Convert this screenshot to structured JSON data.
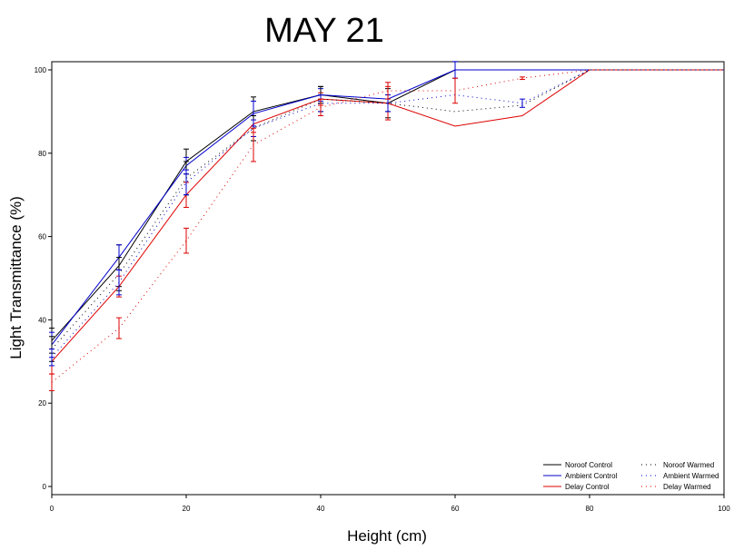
{
  "chart_data": {
    "type": "line",
    "title": "MAY 21",
    "xlabel": "Height (cm)",
    "ylabel": "Light Transmittance (%)",
    "xlim": [
      0,
      100
    ],
    "ylim": [
      0,
      100
    ],
    "x_ticks": [
      0,
      20,
      40,
      60,
      80,
      100
    ],
    "y_ticks": [
      0,
      20,
      40,
      60,
      80,
      100
    ],
    "grid": false,
    "legend_position": "bottom-right",
    "series": [
      {
        "name": "Noroof Control",
        "color": "#000000",
        "style": "solid",
        "x": [
          0,
          10,
          20,
          30,
          40,
          50,
          60,
          70,
          80,
          90,
          100
        ],
        "y": [
          35,
          53,
          78,
          90,
          94,
          92,
          100,
          100,
          100,
          100,
          100
        ],
        "err": [
          [
            0,
            3
          ],
          [
            10,
            5
          ],
          [
            20,
            3
          ],
          [
            30,
            3.5
          ],
          [
            40,
            2
          ],
          [
            50,
            3.5
          ]
        ]
      },
      {
        "name": "Ambient Control",
        "color": "#0000cc",
        "style": "solid",
        "x": [
          0,
          10,
          20,
          30,
          40,
          50,
          60,
          70,
          80,
          90,
          100
        ],
        "y": [
          34,
          55,
          77,
          89.5,
          94,
          93,
          100,
          100,
          100,
          100,
          100
        ],
        "err": [
          [
            0,
            3
          ],
          [
            10,
            3
          ],
          [
            20,
            2
          ],
          [
            30,
            3
          ],
          [
            40,
            1.5
          ],
          [
            60,
            2
          ]
        ]
      },
      {
        "name": "Delay Control",
        "color": "#dd0000",
        "style": "solid",
        "x": [
          0,
          10,
          20,
          30,
          40,
          50,
          60,
          70,
          80,
          90,
          100
        ],
        "y": [
          30,
          48,
          70,
          87,
          93,
          92,
          86.5,
          89,
          100,
          100,
          100
        ],
        "err": [
          [
            0,
            3
          ],
          [
            10,
            2.5
          ],
          [
            20,
            3
          ],
          [
            30,
            2
          ],
          [
            40,
            1.5
          ],
          [
            50,
            4
          ]
        ]
      },
      {
        "name": "Noroof Warmed",
        "color": "#000000",
        "style": "dotted",
        "x": [
          0,
          10,
          20,
          30,
          40,
          50,
          60,
          70,
          80,
          90,
          100
        ],
        "y": [
          33,
          51,
          74,
          86,
          93,
          92,
          90,
          91.5,
          100,
          100,
          100
        ],
        "err": [
          [
            0,
            3
          ],
          [
            10,
            4
          ],
          [
            20,
            4
          ],
          [
            30,
            3
          ],
          [
            40,
            3
          ],
          [
            50,
            2
          ]
        ]
      },
      {
        "name": "Ambient Warmed",
        "color": "#0000cc",
        "style": "dotted",
        "x": [
          0,
          10,
          20,
          30,
          40,
          50,
          60,
          70,
          80,
          90,
          100
        ],
        "y": [
          31,
          49,
          73,
          86,
          92,
          92,
          94,
          92,
          100,
          100,
          100
        ],
        "err": [
          [
            0,
            2
          ],
          [
            10,
            3
          ],
          [
            20,
            3
          ],
          [
            30,
            2
          ],
          [
            40,
            2
          ],
          [
            50,
            2
          ],
          [
            70,
            1
          ]
        ]
      },
      {
        "name": "Delay Warmed",
        "color": "#dd0000",
        "style": "dotted",
        "x": [
          0,
          10,
          20,
          30,
          40,
          50,
          60,
          70,
          80,
          90,
          100
        ],
        "y": [
          25,
          38,
          59,
          82,
          91,
          95,
          95,
          98,
          100,
          100,
          100
        ],
        "err": [
          [
            0,
            2
          ],
          [
            10,
            2.5
          ],
          [
            20,
            3
          ],
          [
            30,
            4
          ],
          [
            40,
            2
          ],
          [
            50,
            2
          ],
          [
            60,
            3
          ],
          [
            70,
            0.3
          ]
        ]
      }
    ]
  }
}
